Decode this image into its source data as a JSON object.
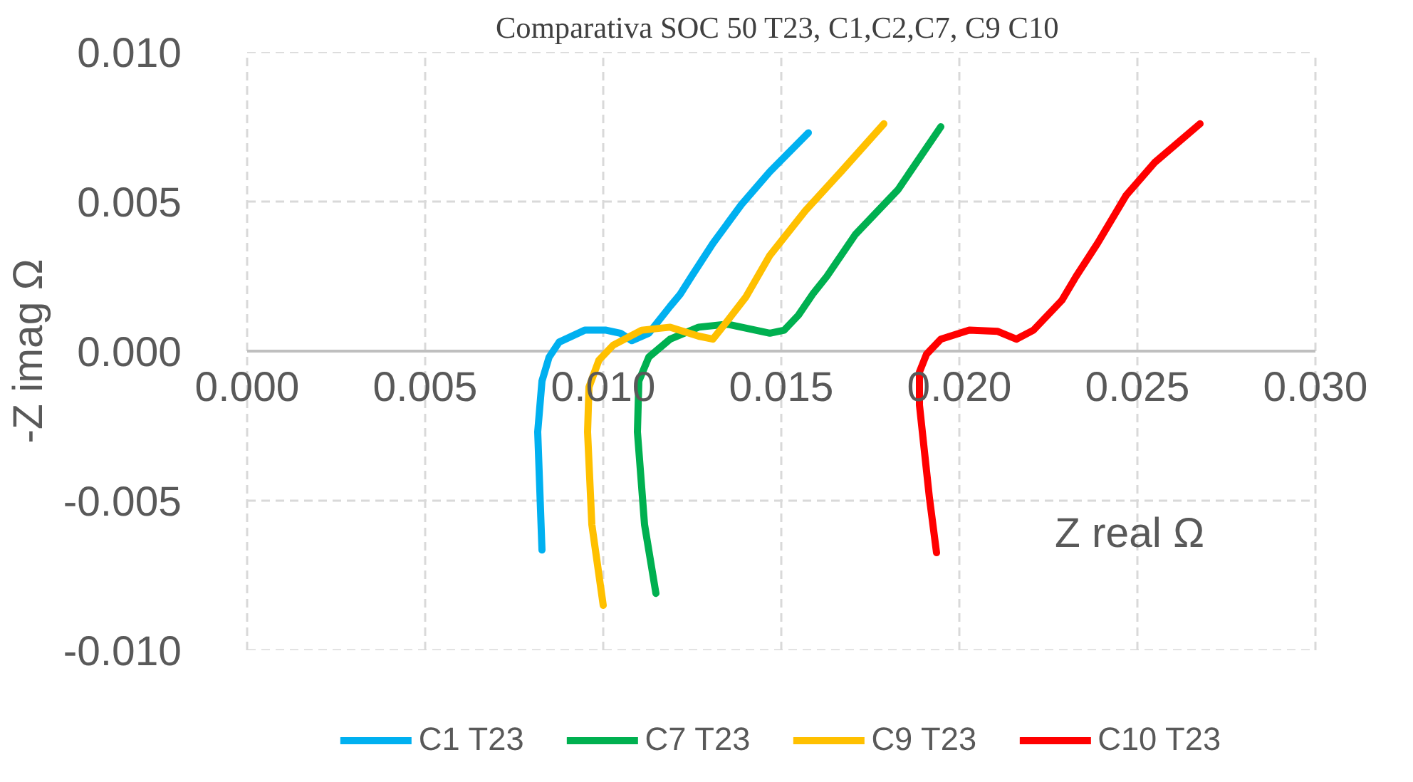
{
  "chart_data": {
    "type": "line",
    "title": "Comparativa SOC 50 T23,  C1,C2,C7, C9 C10",
    "xlabel": "Z real Ω",
    "ylabel": "-Z imag Ω",
    "xlim": [
      0,
      0.03
    ],
    "ylim": [
      -0.01,
      0.01
    ],
    "xticks": [
      {
        "value": 0,
        "label": "0.000"
      },
      {
        "value": 0.005,
        "label": "0.005"
      },
      {
        "value": 0.01,
        "label": "0.010"
      },
      {
        "value": 0.015,
        "label": "0.015"
      },
      {
        "value": 0.02,
        "label": "0.020"
      },
      {
        "value": 0.025,
        "label": "0.025"
      },
      {
        "value": 0.03,
        "label": "0.030"
      }
    ],
    "yticks": [
      {
        "value": -0.01,
        "label": "-0.010"
      },
      {
        "value": -0.005,
        "label": "-0.005"
      },
      {
        "value": 0,
        "label": "0.000"
      },
      {
        "value": 0.005,
        "label": "0.005"
      },
      {
        "value": 0.01,
        "label": "0.010"
      }
    ],
    "grid": true,
    "legend": "bottom",
    "marker": "none",
    "line_style": "solid",
    "series": [
      {
        "name": "C1 T23",
        "color": "#00b0f0",
        "x": [
          0.00828,
          0.00816,
          0.00828,
          0.00848,
          0.00876,
          0.00948,
          0.01008,
          0.01048,
          0.0108,
          0.01128,
          0.01188,
          0.01216,
          0.01248,
          0.01308,
          0.01388,
          0.01468,
          0.01576
        ],
        "values": [
          -0.00665,
          -0.0027,
          -0.001,
          -0.0002,
          0.0003,
          0.0007,
          0.0007,
          0.0006,
          0.00035,
          0.0006,
          0.0015,
          0.0019,
          0.0025,
          0.0036,
          0.0049,
          0.006,
          0.0073
        ]
      },
      {
        "name": "C7 T23",
        "color": "#00b050",
        "x": [
          0.01148,
          0.01116,
          0.01096,
          0.011,
          0.01128,
          0.01188,
          0.01268,
          0.01348,
          0.01428,
          0.01468,
          0.01508,
          0.01548,
          0.01588,
          0.01628,
          0.01708,
          0.01828,
          0.01948
        ],
        "values": [
          -0.0081,
          -0.0058,
          -0.0027,
          -0.001,
          -0.0002,
          0.0004,
          0.0008,
          0.0009,
          0.0007,
          0.0006,
          0.0007,
          0.0012,
          0.0019,
          0.0025,
          0.0039,
          0.0054,
          0.0075
        ]
      },
      {
        "name": "C9 T23",
        "color": "#ffc000",
        "x": [
          0.01,
          0.00968,
          0.00956,
          0.0096,
          0.00988,
          0.01028,
          0.01108,
          0.01188,
          0.01268,
          0.01308,
          0.01348,
          0.014,
          0.01468,
          0.01568,
          0.01668,
          0.01788
        ],
        "values": [
          -0.0085,
          -0.0058,
          -0.0027,
          -0.0012,
          -0.0003,
          0.0002,
          0.0007,
          0.0008,
          0.0005,
          0.0004,
          0.001,
          0.0018,
          0.0032,
          0.0047,
          0.006,
          0.0076
        ]
      },
      {
        "name": "C10 T23",
        "color": "#ff0000",
        "x": [
          0.01936,
          0.01916,
          0.01888,
          0.01888,
          0.01908,
          0.01948,
          0.02028,
          0.02108,
          0.0216,
          0.02208,
          0.02288,
          0.02328,
          0.02388,
          0.02468,
          0.02548,
          0.02676
        ],
        "values": [
          -0.00674,
          -0.0049,
          -0.0018,
          -0.0007,
          -0.0001,
          0.0004,
          0.0007,
          0.00066,
          0.0004,
          0.0007,
          0.0017,
          0.0025,
          0.0036,
          0.0052,
          0.0063,
          0.0076
        ]
      }
    ]
  }
}
